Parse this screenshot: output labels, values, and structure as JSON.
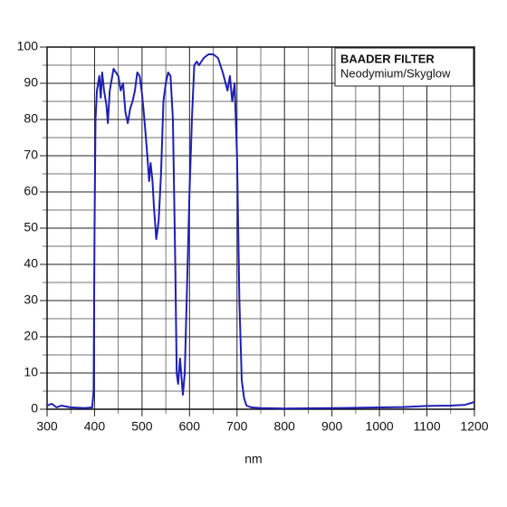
{
  "chart_data": {
    "type": "line",
    "title": "BAADER FILTER",
    "subtitle": "Neodymium/Skyglow",
    "x_label": "nm",
    "color": "#1f1fb4",
    "x": [
      300,
      310,
      320,
      330,
      350,
      380,
      395,
      398,
      400,
      402,
      405,
      410,
      413,
      416,
      420,
      425,
      428,
      432,
      440,
      450,
      455,
      460,
      465,
      470,
      475,
      480,
      485,
      490,
      495,
      500,
      505,
      510,
      515,
      518,
      522,
      525,
      530,
      535,
      540,
      545,
      550,
      555,
      560,
      565,
      570,
      573,
      576,
      580,
      583,
      586,
      590,
      593,
      597,
      600,
      605,
      610,
      615,
      620,
      630,
      640,
      650,
      660,
      670,
      680,
      685,
      690,
      695,
      700,
      705,
      710,
      715,
      720,
      730,
      750,
      800,
      900,
      1000,
      1050,
      1100,
      1150,
      1180,
      1200
    ],
    "values": [
      1,
      1.5,
      0.5,
      1,
      0.5,
      0.3,
      0.5,
      5,
      50,
      80,
      88,
      92,
      86,
      93,
      88,
      84,
      79,
      88,
      94,
      92,
      88,
      90,
      82,
      79,
      83,
      85,
      88,
      93,
      92,
      87,
      80,
      72,
      63,
      68,
      63,
      56,
      47,
      52,
      65,
      85,
      90,
      93,
      92,
      80,
      40,
      10,
      7,
      14,
      9,
      4,
      10,
      25,
      45,
      60,
      80,
      95,
      96,
      95,
      97,
      98,
      98,
      97,
      93,
      88,
      92,
      85,
      90,
      70,
      30,
      8,
      3,
      1,
      0.5,
      0.3,
      0.2,
      0.3,
      0.5,
      0.6,
      0.9,
      1,
      1.2,
      2
    ],
    "xlim": [
      300,
      1200
    ],
    "ylim": [
      0,
      100
    ],
    "xticks": [
      300,
      400,
      500,
      600,
      700,
      800,
      900,
      1000,
      1100,
      1200
    ],
    "yticks": [
      0,
      10,
      20,
      30,
      40,
      50,
      60,
      70,
      80,
      90,
      100
    ],
    "x_minor_ticks": [
      350,
      450,
      550,
      650,
      750,
      850,
      950,
      1050,
      1150
    ],
    "y_minor_ticks": [
      5,
      15,
      25,
      35,
      45,
      55,
      65,
      75,
      85,
      95
    ],
    "grid": true
  }
}
